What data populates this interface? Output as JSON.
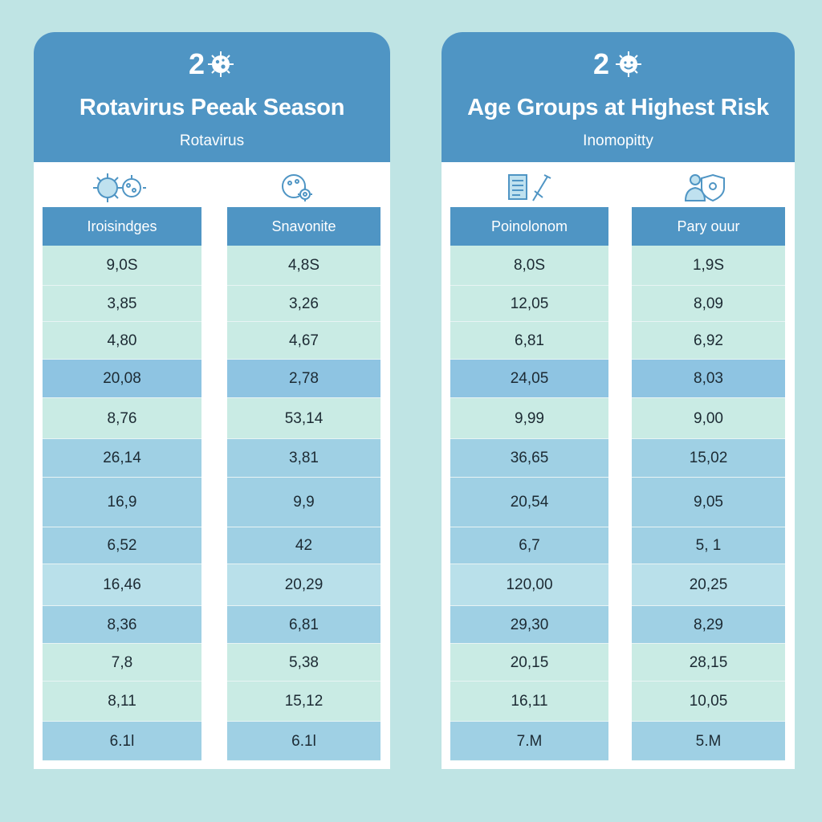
{
  "colors": {
    "background": "#bfe4e4",
    "header": "#4f95c4",
    "row_light": "#c9ebe4",
    "row_mid": "#a8d8e0",
    "row_dark": "#8ec4e2"
  },
  "panels": [
    {
      "badge": "2",
      "title": "Rotavirus Peeak Season",
      "subtitle": "Rotavirus",
      "icons": [
        "virus-cells-icon",
        "virus-gear-icon"
      ],
      "columns": [
        {
          "header": "Iroisindges",
          "values": [
            "9,0S",
            "3,85",
            "4,80",
            "20,08",
            "8,76",
            "26,14",
            "16,9",
            "6,52",
            "16,46",
            "8,36",
            "7,8",
            "8,11",
            "6.1l"
          ]
        },
        {
          "header": "Snavonite",
          "values": [
            "4,8S",
            "3,26",
            "4,67",
            "2,78",
            "53,14",
            "3,81",
            "9,9",
            "42",
            "20,29",
            "6,81",
            "5,38",
            "15,12",
            "6.1l"
          ]
        }
      ]
    },
    {
      "badge": "2",
      "title": "Age Groups at Highest Risk",
      "subtitle": "Inomopitty",
      "icons": [
        "clipboard-syringe-icon",
        "person-shield-icon"
      ],
      "columns": [
        {
          "header": "Poinolonom",
          "values": [
            "8,0S",
            "12,05",
            "6,81",
            "24,05",
            "9,99",
            "36,65",
            "20,54",
            "6,7",
            "120,00",
            "29,30",
            "20,15",
            "16,11",
            "7.M"
          ]
        },
        {
          "header": "Pary ouur",
          "values": [
            "1,9S",
            "8,09",
            "6,92",
            "8,03",
            "9,00",
            "15,02",
            "9,05",
            "5, 1",
            "20,25",
            "8,29",
            "28,15",
            "10,05",
            "5.M"
          ]
        }
      ]
    }
  ]
}
